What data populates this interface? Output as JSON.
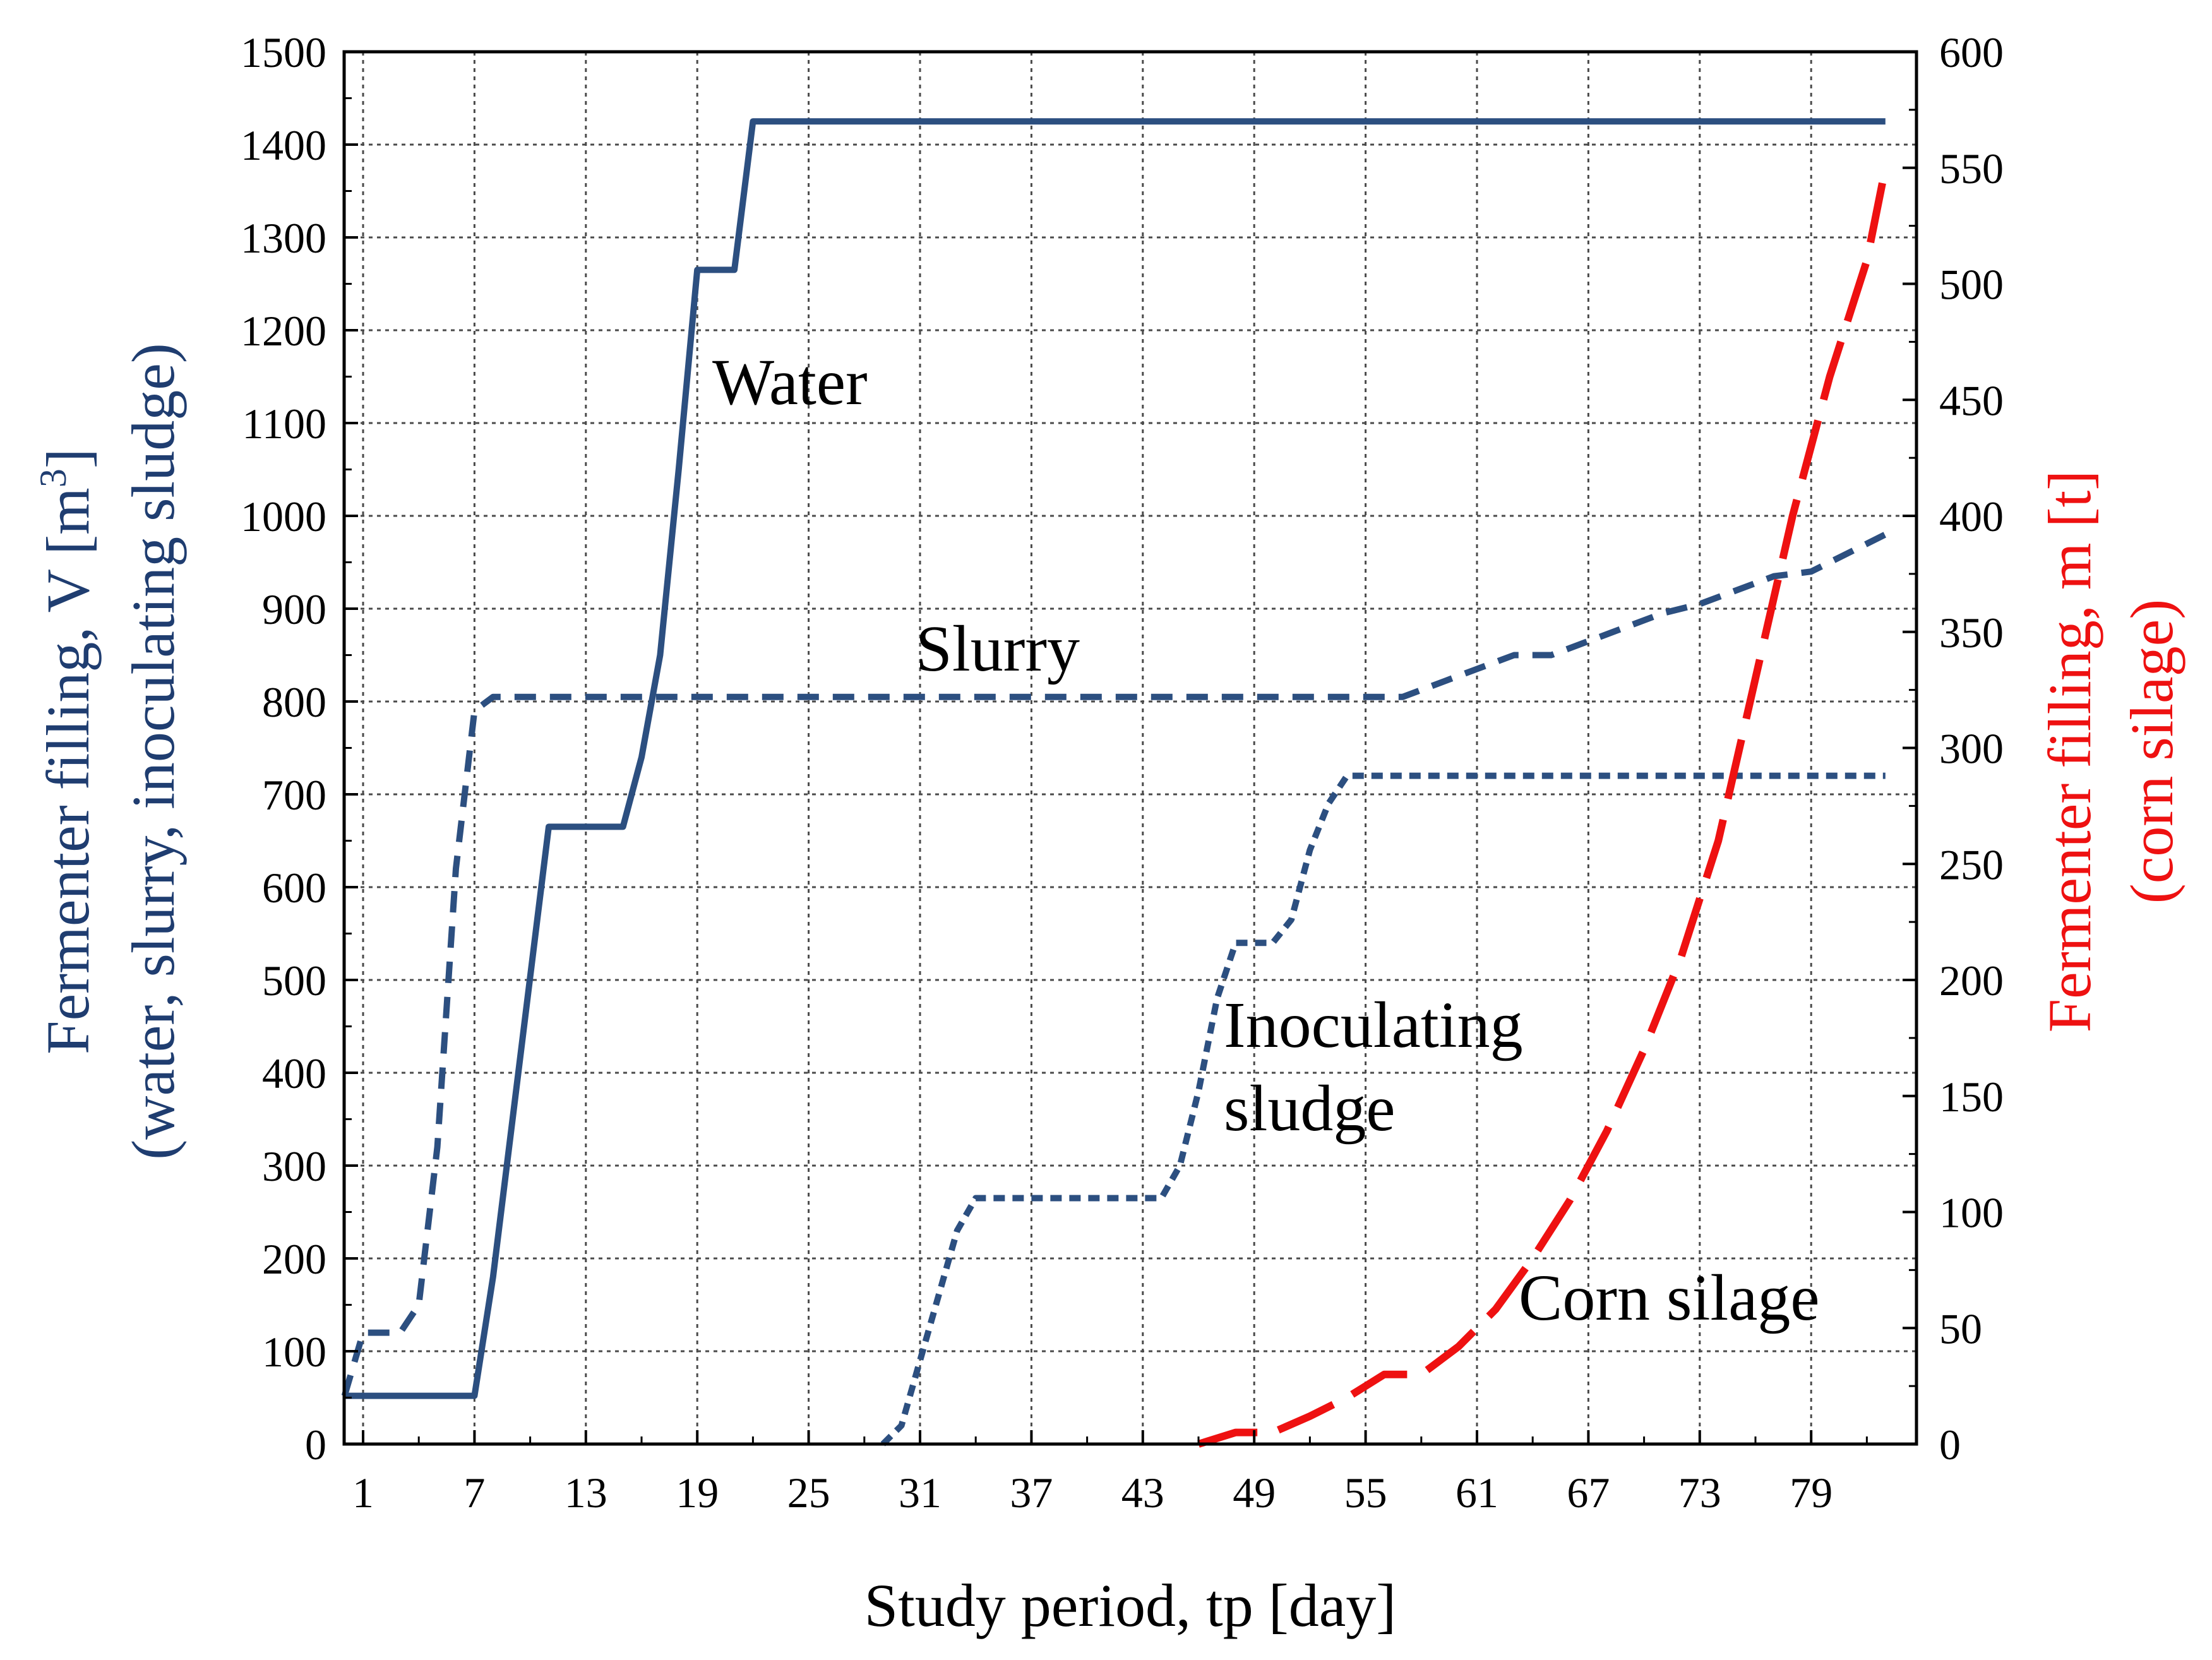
{
  "chart_data": {
    "type": "line",
    "xlabel": "Study period, tp [day]",
    "x_ticks": [
      1,
      7,
      13,
      19,
      25,
      31,
      37,
      43,
      49,
      55,
      61,
      67,
      73,
      79
    ],
    "xlim": [
      0,
      84
    ],
    "y_left": {
      "label_line1": "Fermenter filling, V [m",
      "label_sup": "3",
      "label_close": "]",
      "label_line2": "(water, slurry, inoculating sludge)",
      "ticks": [
        0,
        100,
        200,
        300,
        400,
        500,
        600,
        700,
        800,
        900,
        1000,
        1100,
        1200,
        1300,
        1400,
        1500
      ],
      "lim": [
        0,
        1500
      ],
      "color": "#1f3d70"
    },
    "y_right": {
      "label_line1": "Fermenter filling, m [t]",
      "label_line2": "(corn silage)",
      "ticks": [
        0,
        50,
        100,
        150,
        200,
        250,
        300,
        350,
        400,
        450,
        500,
        550,
        600
      ],
      "lim": [
        0,
        600
      ],
      "color": "#ee1111"
    },
    "series": [
      {
        "name": "Water",
        "axis": "left",
        "style": "solid",
        "color": "#2c4f80",
        "x": [
          0,
          7,
          8,
          11,
          15,
          16,
          17,
          18,
          19,
          20,
          21,
          22,
          83
        ],
        "y": [
          52,
          52,
          180,
          665,
          665,
          740,
          850,
          1050,
          1265,
          1265,
          1265,
          1425,
          1425
        ]
      },
      {
        "name": "Slurry",
        "axis": "left",
        "style": "dashed",
        "color": "#2c4f80",
        "x": [
          0,
          1,
          3,
          4,
          5,
          6,
          7,
          8,
          57,
          61,
          63,
          65,
          69,
          71,
          73,
          77,
          79,
          83
        ],
        "y": [
          52,
          120,
          120,
          150,
          320,
          620,
          790,
          805,
          805,
          835,
          850,
          850,
          880,
          895,
          905,
          935,
          940,
          980
        ]
      },
      {
        "name": "Inoculating sludge",
        "axis": "left",
        "style": "dotted",
        "color": "#2c4f80",
        "x": [
          29,
          30,
          33,
          34,
          44,
          45,
          46,
          47,
          48,
          50,
          51,
          52,
          53,
          54,
          83
        ],
        "y": [
          0,
          20,
          230,
          265,
          265,
          300,
          380,
          480,
          540,
          540,
          565,
          640,
          690,
          720,
          720
        ]
      },
      {
        "name": "Corn silage",
        "axis": "right",
        "style": "longdash",
        "color": "#ee1111",
        "x": [
          46,
          48,
          50,
          52,
          54,
          56,
          58,
          60,
          62,
          64,
          66,
          68,
          70,
          72,
          74,
          76,
          78,
          80,
          82,
          83
        ],
        "y": [
          0,
          5,
          5,
          12,
          20,
          30,
          30,
          42,
          58,
          80,
          105,
          135,
          170,
          210,
          260,
          330,
          400,
          460,
          510,
          550
        ]
      }
    ],
    "annotations": [
      {
        "text": "Water"
      },
      {
        "text": "Slurry"
      },
      {
        "text": "Inoculating"
      },
      {
        "text": "sludge"
      },
      {
        "text": "Corn silage"
      }
    ]
  }
}
